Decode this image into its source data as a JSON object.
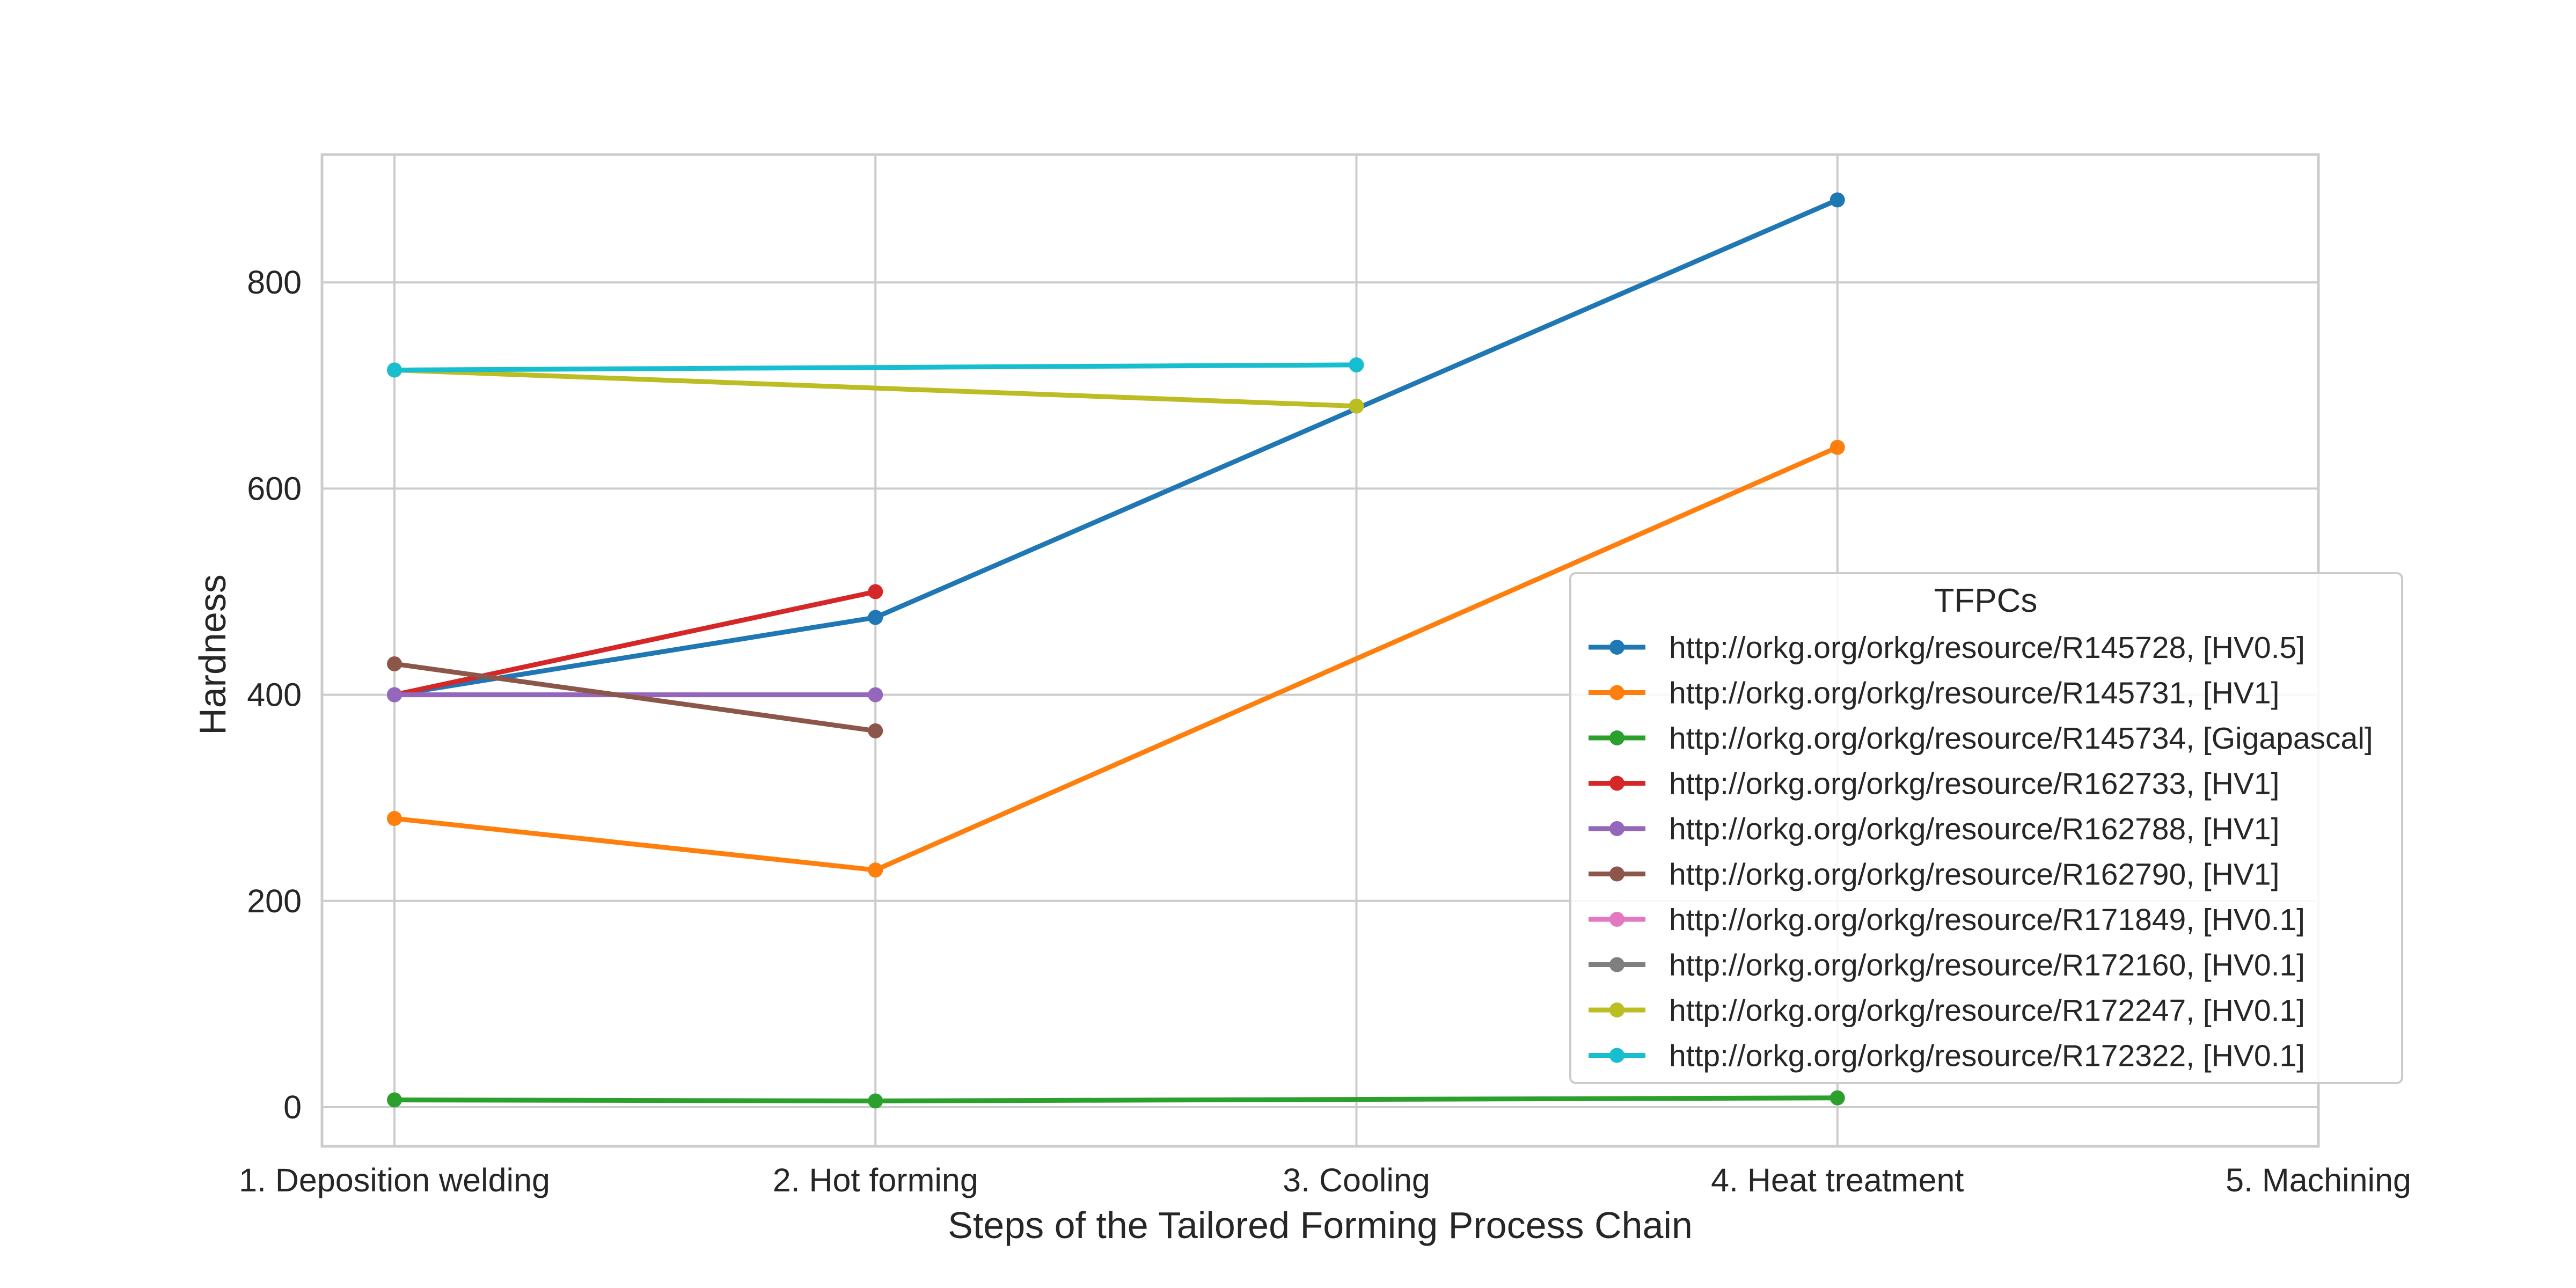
{
  "chart_data": {
    "type": "line",
    "xlabel": "Steps of the Tailored Forming Process Chain",
    "ylabel": "Hardness",
    "categories": [
      "1. Deposition welding",
      "2. Hot forming",
      "3. Cooling",
      "4. Heat treatment",
      "5. Machining"
    ],
    "ylim": [
      -38,
      924
    ],
    "yticks": [
      0,
      200,
      400,
      600,
      800
    ],
    "grid": true,
    "legend": {
      "title": "TFPCs",
      "placement": "center-right"
    },
    "series": [
      {
        "name": "http://orkg.org/orkg/resource/R145728, [HV0.5]",
        "color": "#1f77b4",
        "values": [
          400,
          475,
          null,
          880,
          null
        ]
      },
      {
        "name": "http://orkg.org/orkg/resource/R145731, [HV1]",
        "color": "#ff7f0e",
        "values": [
          280,
          230,
          null,
          640,
          null
        ]
      },
      {
        "name": "http://orkg.org/orkg/resource/R145734, [Gigapascal]",
        "color": "#2ca02c",
        "values": [
          7,
          6,
          null,
          9,
          null
        ]
      },
      {
        "name": "http://orkg.org/orkg/resource/R162733, [HV1]",
        "color": "#d62728",
        "values": [
          400,
          500,
          null,
          null,
          null
        ]
      },
      {
        "name": "http://orkg.org/orkg/resource/R162788, [HV1]",
        "color": "#9467bd",
        "values": [
          400,
          400,
          null,
          null,
          null
        ]
      },
      {
        "name": "http://orkg.org/orkg/resource/R162790, [HV1]",
        "color": "#8c564b",
        "values": [
          430,
          365,
          null,
          null,
          null
        ]
      },
      {
        "name": "http://orkg.org/orkg/resource/R171849, [HV0.1]",
        "color": "#e377c2",
        "values": [
          null,
          null,
          null,
          null,
          null
        ]
      },
      {
        "name": "http://orkg.org/orkg/resource/R172160, [HV0.1]",
        "color": "#7f7f7f",
        "values": [
          null,
          null,
          null,
          null,
          null
        ]
      },
      {
        "name": "http://orkg.org/orkg/resource/R172247, [HV0.1]",
        "color": "#bcbd22",
        "values": [
          715,
          null,
          680,
          null,
          null
        ]
      },
      {
        "name": "http://orkg.org/orkg/resource/R172322, [HV0.1]",
        "color": "#17becf",
        "values": [
          715,
          null,
          720,
          null,
          null
        ]
      }
    ]
  }
}
